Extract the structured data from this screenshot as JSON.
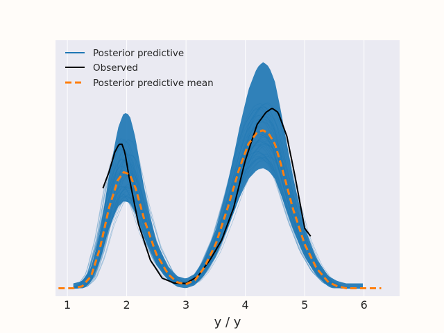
{
  "chart_data": {
    "type": "line",
    "xlabel": "y / y",
    "ylabel": "",
    "xlim": [
      0.8,
      6.6
    ],
    "ylim": [
      -0.02,
      0.62
    ],
    "x_ticks": [
      "1",
      "2",
      "3",
      "4",
      "5",
      "6"
    ],
    "grid": true,
    "legend_placement": "top-left",
    "legend": [
      {
        "label": "Posterior predictive",
        "style": "solid",
        "color": "#1f77b4"
      },
      {
        "label": "Observed",
        "style": "solid",
        "color": "#000000"
      },
      {
        "label": "Posterior predictive mean",
        "style": "dashed",
        "color": "#ff7f0e"
      }
    ],
    "series": [
      {
        "name": "Posterior predictive mean",
        "color": "#ff7f0e",
        "x": [
          0.85,
          1.1,
          1.25,
          1.4,
          1.55,
          1.7,
          1.85,
          1.95,
          2.05,
          2.15,
          2.3,
          2.5,
          2.7,
          2.85,
          3.0,
          3.15,
          3.3,
          3.5,
          3.7,
          3.9,
          4.05,
          4.2,
          4.3,
          4.4,
          4.5,
          4.6,
          4.8,
          5.0,
          5.2,
          5.4,
          5.55,
          5.7,
          5.9,
          6.1,
          6.3
        ],
        "y": [
          0.0,
          0.0,
          0.005,
          0.03,
          0.1,
          0.2,
          0.27,
          0.29,
          0.285,
          0.25,
          0.17,
          0.085,
          0.035,
          0.015,
          0.01,
          0.02,
          0.05,
          0.11,
          0.2,
          0.3,
          0.36,
          0.39,
          0.395,
          0.385,
          0.36,
          0.31,
          0.2,
          0.11,
          0.05,
          0.015,
          0.005,
          0.0,
          0.0,
          0.0,
          0.0
        ]
      },
      {
        "name": "Observed",
        "color": "#000000",
        "x": [
          1.6,
          1.7,
          1.8,
          1.87,
          1.92,
          1.97,
          2.05,
          2.2,
          2.4,
          2.6,
          2.8,
          3.0,
          3.2,
          3.4,
          3.6,
          3.8,
          4.0,
          4.2,
          4.35,
          4.45,
          4.55,
          4.7,
          4.85,
          5.0,
          5.1
        ],
        "y": [
          0.25,
          0.29,
          0.34,
          0.36,
          0.36,
          0.34,
          0.27,
          0.16,
          0.07,
          0.025,
          0.013,
          0.012,
          0.03,
          0.07,
          0.12,
          0.2,
          0.32,
          0.41,
          0.44,
          0.45,
          0.44,
          0.38,
          0.27,
          0.15,
          0.13
        ]
      }
    ]
  }
}
